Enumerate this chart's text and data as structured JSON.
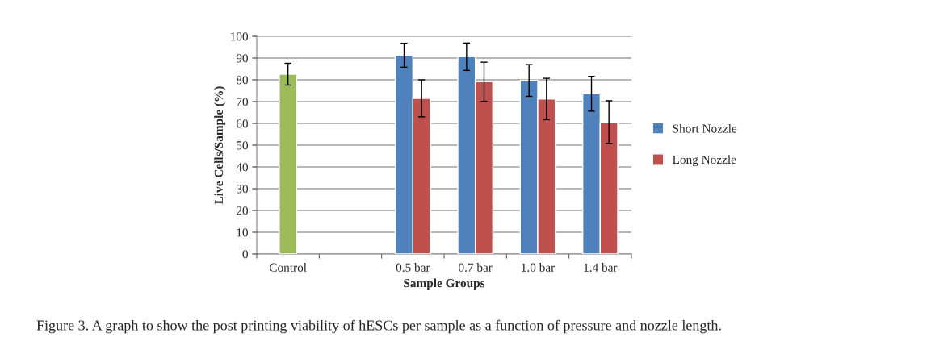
{
  "chart_data": {
    "type": "bar",
    "xlabel": "Sample Groups",
    "ylabel": "Live Cells/Sample (%)",
    "categories": [
      "Control",
      null,
      "0.5 bar",
      "0.7 bar",
      "1.0 bar",
      "1.4 bar"
    ],
    "series": [
      {
        "color": "#9bbb59",
        "values": [
          82.6,
          null,
          null,
          null,
          null,
          null
        ],
        "errors": [
          5,
          null,
          null,
          null,
          null,
          null
        ]
      },
      {
        "name": "Short Nozzle",
        "color": "#4f81bd",
        "values": [
          null,
          null,
          91.3,
          90.6,
          79.7,
          73.6
        ],
        "errors": [
          null,
          null,
          5.5,
          6.3,
          7.3,
          8
        ]
      },
      {
        "name": "Long Nozzle",
        "color": "#c0504d",
        "values": [
          null,
          null,
          71.5,
          79.1,
          71.2,
          60.6
        ],
        "errors": [
          null,
          null,
          8.5,
          9,
          9.5,
          9.8
        ]
      }
    ],
    "ylim": [
      0,
      100
    ],
    "yticks": [
      0,
      10,
      20,
      30,
      40,
      50,
      60,
      70,
      80,
      90,
      100
    ],
    "grid": "y",
    "legend": "right",
    "annotations": [
      "Figure 3. A graph to show the post printing viability of hESCs per sample as a function of pressure and nozzle length."
    ]
  }
}
